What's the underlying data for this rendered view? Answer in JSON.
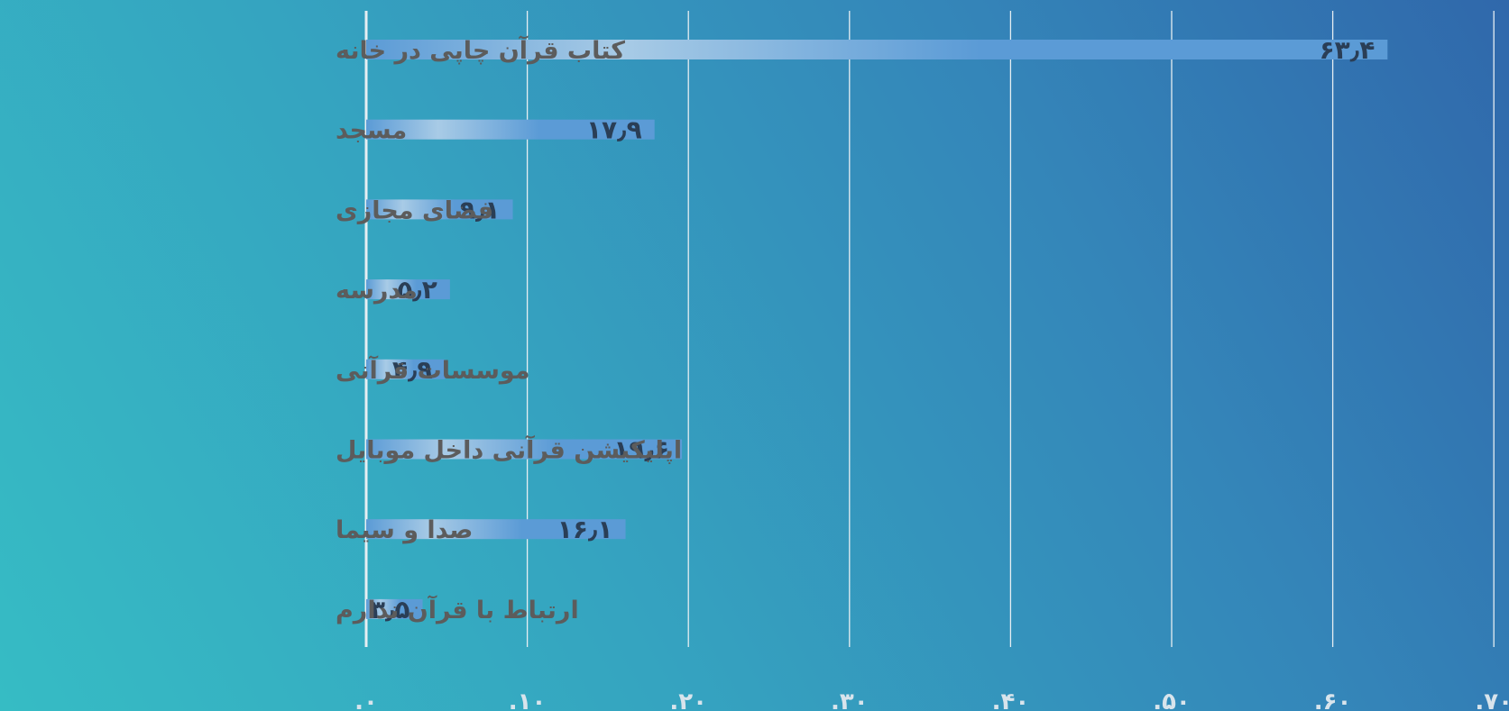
{
  "chart_data": {
    "type": "bar",
    "orientation": "horizontal",
    "categories": [
      "کتاب قرآن چاپی در خانه",
      "مسجد",
      "فضای مجازی",
      "مدرسه",
      "موسسات قرآنی",
      "اپلیکیشن قرآنی داخل موبایل",
      "صدا و سیما",
      "ارتباط با قرآن ندارم"
    ],
    "values": [
      63.4,
      17.9,
      9.1,
      5.2,
      4.9,
      19.6,
      16.1,
      3.5
    ],
    "value_labels": [
      "۶۳٫۴",
      "۱۷٫۹",
      "۹٫۱",
      "۵٫۲",
      "۴٫۹",
      "۱۹٫۶",
      "۱۶٫۱",
      "۳٫۵"
    ],
    "xlim": [
      0,
      70
    ],
    "x_ticks": [
      0,
      10,
      20,
      30,
      40,
      50,
      60,
      70
    ],
    "x_tick_labels": [
      ".۰",
      ".۱۰",
      ".۲۰",
      ".۳۰",
      ".۴۰",
      ".۵۰",
      ".۶۰",
      ".۷۰"
    ],
    "grid": true,
    "legend": "none",
    "title": "",
    "xlabel": "",
    "ylabel": "",
    "colors": {
      "bar_light": "#a8cbe6",
      "bar_main": "#5b9bd6",
      "category_text": "#5c5c5c",
      "value_text": "#2a3e56",
      "tick_text": "#d8e4ec",
      "gridline": "#e6eef2"
    }
  }
}
